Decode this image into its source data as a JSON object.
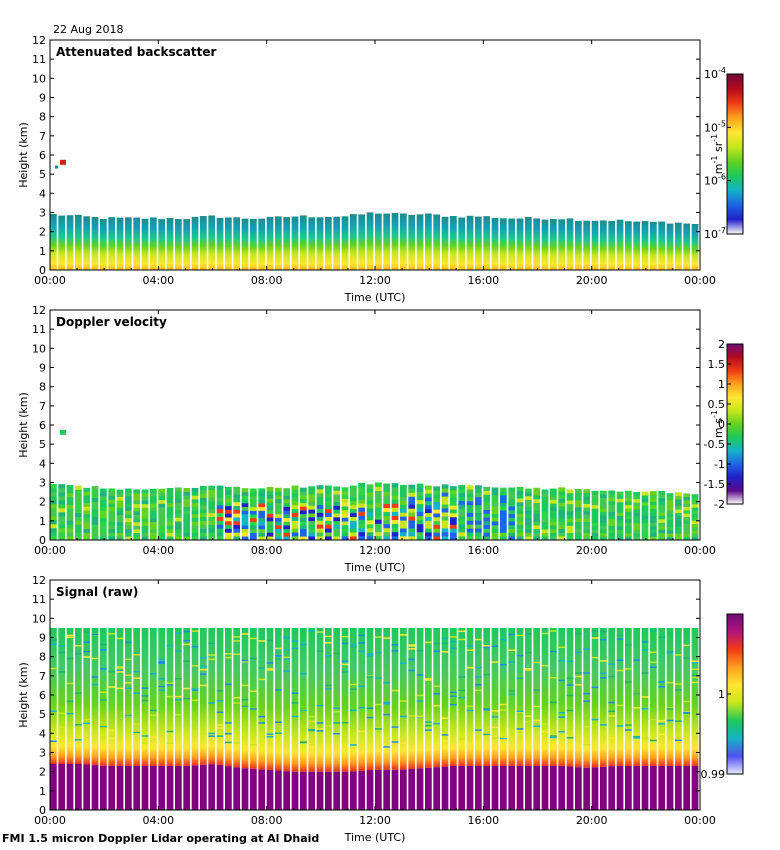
{
  "date_label": "22 Aug 2018",
  "footer": "FMI 1.5 micron Doppler Lidar operating at Al Dhaid",
  "chart_data": [
    {
      "type": "heatmap",
      "title": "Attenuated backscatter",
      "xlabel": "Time (UTC)",
      "ylabel": "Height (km)",
      "x_ticks": [
        "00:00",
        "04:00",
        "08:00",
        "12:00",
        "16:00",
        "20:00",
        "00:00"
      ],
      "y_ticks": [
        0,
        1,
        2,
        3,
        4,
        5,
        6,
        7,
        8,
        9,
        10,
        11,
        12
      ],
      "ylim": [
        0,
        12
      ],
      "colorbar": {
        "scale": "log",
        "ticks": [
          "10^-7",
          "10^-6",
          "10^-5",
          "10^-4"
        ],
        "unit": "m^-1 sr^-1",
        "unit_main": "m",
        "unit_exp1": "-1",
        "unit_mid": " sr",
        "unit_exp2": "-1",
        "tick_labels": [
          {
            "base": "10",
            "exp": "-4"
          },
          {
            "base": "10",
            "exp": "-5"
          },
          {
            "base": "10",
            "exp": "-6"
          },
          {
            "base": "10",
            "exp": "-7"
          }
        ]
      },
      "layer_top_km": [
        2.9,
        2.8,
        2.7,
        2.7,
        2.7,
        2.7,
        2.8,
        2.7,
        2.7,
        2.8,
        2.8,
        2.8,
        3.0,
        2.9,
        2.9,
        2.8,
        2.8,
        2.7,
        2.7,
        2.7,
        2.6,
        2.6,
        2.5,
        2.5,
        2.4
      ]
    },
    {
      "type": "heatmap",
      "title": "Doppler velocity",
      "xlabel": "Time (UTC)",
      "ylabel": "Height (km)",
      "x_ticks": [
        "00:00",
        "04:00",
        "08:00",
        "12:00",
        "16:00",
        "20:00",
        "00:00"
      ],
      "y_ticks": [
        0,
        1,
        2,
        3,
        4,
        5,
        6,
        7,
        8,
        9,
        10,
        11,
        12
      ],
      "ylim": [
        0,
        12
      ],
      "colorbar": {
        "scale": "linear",
        "range": [
          -2,
          2
        ],
        "ticks": [
          "2",
          "1.5",
          "1",
          "0.5",
          "0",
          "-0.5",
          "-1",
          "-1.5",
          "-2"
        ],
        "unit": "m s^-1",
        "unit_main": "m s",
        "unit_exp": "-1"
      },
      "layer_top_km": [
        2.9,
        2.8,
        2.7,
        2.7,
        2.7,
        2.7,
        2.8,
        2.7,
        2.7,
        2.8,
        2.8,
        2.8,
        3.0,
        2.9,
        2.9,
        2.8,
        2.8,
        2.7,
        2.7,
        2.7,
        2.6,
        2.6,
        2.5,
        2.5,
        2.4
      ]
    },
    {
      "type": "heatmap",
      "title": "Signal (raw)",
      "xlabel": "Time (UTC)",
      "ylabel": "Height (km)",
      "x_ticks": [
        "00:00",
        "04:00",
        "08:00",
        "12:00",
        "16:00",
        "20:00",
        "00:00"
      ],
      "y_ticks": [
        0,
        1,
        2,
        3,
        4,
        5,
        6,
        7,
        8,
        9,
        10,
        11,
        12
      ],
      "ylim": [
        0,
        12
      ],
      "colorbar": {
        "scale": "linear",
        "range": [
          0.99,
          1.01
        ],
        "ticks": [
          "1",
          "0.99"
        ],
        "unit": ""
      },
      "data_top_km": 9.5,
      "strong_top_km": [
        2.4,
        2.4,
        2.3,
        2.3,
        2.3,
        2.3,
        2.4,
        2.2,
        2.1,
        2.0,
        2.0,
        2.0,
        2.1,
        2.1,
        2.2,
        2.3,
        2.3,
        2.3,
        2.3,
        2.3,
        2.2,
        2.3,
        2.3,
        2.3,
        2.3
      ]
    }
  ]
}
